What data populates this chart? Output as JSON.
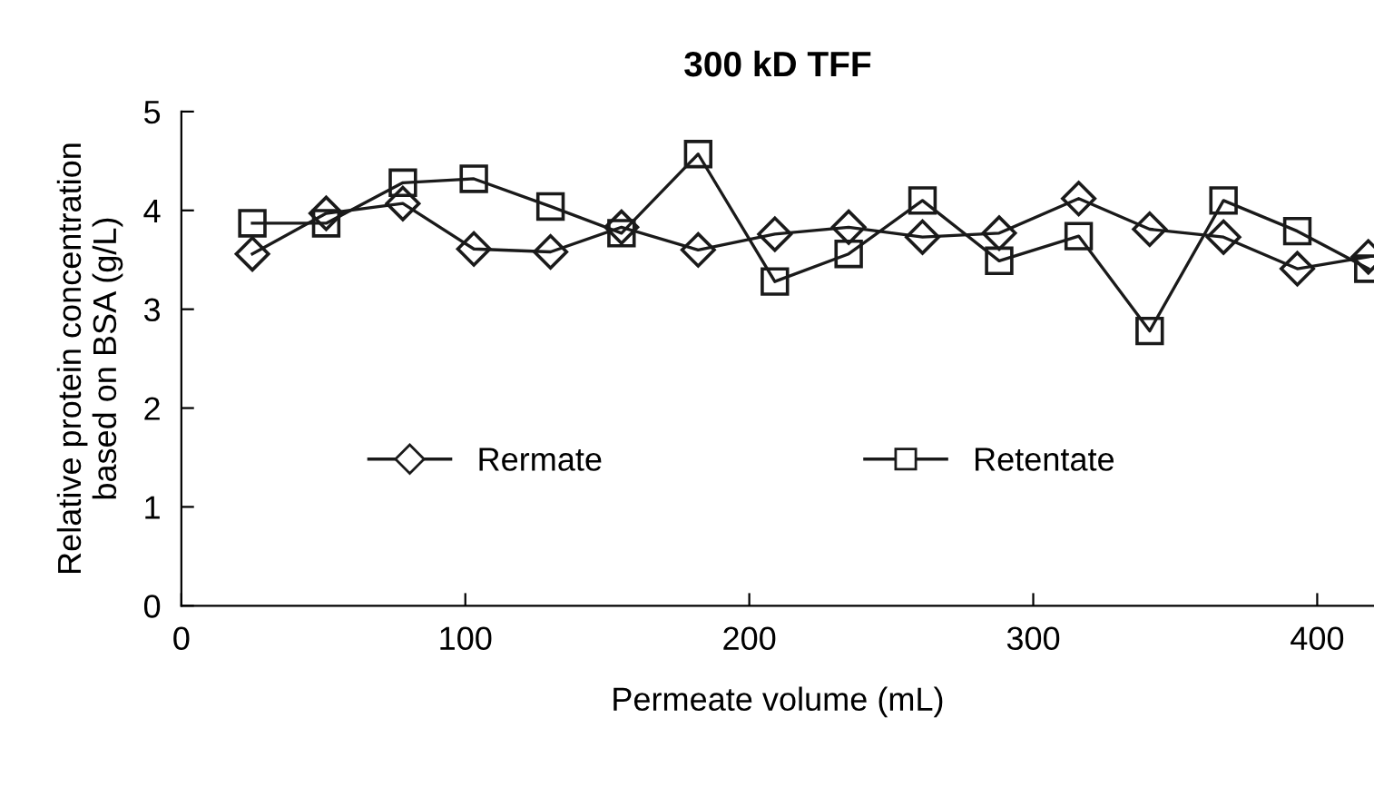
{
  "chart_data": {
    "type": "line",
    "title": "300 kD TFF",
    "xlabel": "Permeate volume (mL)",
    "ylabel": "Relative protein concentration\nbased on BSA (g/L)",
    "x": [
      25,
      51,
      78,
      103,
      130,
      155,
      182,
      209,
      235,
      261,
      288,
      316,
      341,
      367,
      393,
      418
    ],
    "series": [
      {
        "name": "Rermate",
        "color": "#1a1a1a",
        "marker": "diamond",
        "values": [
          3.56,
          3.97,
          4.07,
          3.61,
          3.58,
          3.83,
          3.6,
          3.76,
          3.83,
          3.73,
          3.77,
          4.12,
          3.81,
          3.73,
          3.41,
          3.53
        ]
      },
      {
        "name": "Retentate",
        "color": "#1a1a1a",
        "marker": "square",
        "values": [
          3.87,
          3.87,
          4.28,
          4.32,
          4.04,
          3.77,
          4.57,
          3.28,
          3.56,
          4.1,
          3.49,
          3.74,
          2.78,
          4.1,
          3.79,
          3.41
        ]
      }
    ],
    "xlim": [
      0,
      420
    ],
    "xticks": [
      0,
      100,
      200,
      300,
      400
    ],
    "ylim": [
      0,
      5
    ],
    "yticks": [
      0,
      1,
      2,
      3,
      4,
      5
    ],
    "grid": false,
    "legend": "bottom",
    "line_style": "solid"
  }
}
